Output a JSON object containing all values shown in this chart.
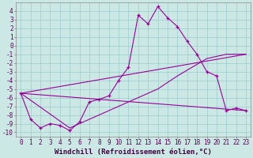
{
  "xlabel": "Windchill (Refroidissement éolien,°C)",
  "bg_color": "#cce8e4",
  "grid_color": "#99cccc",
  "line_color": "#990099",
  "xlim": [
    -0.5,
    23.5
  ],
  "ylim": [
    -10.5,
    5.0
  ],
  "xticks": [
    0,
    1,
    2,
    3,
    4,
    5,
    6,
    7,
    8,
    9,
    10,
    11,
    12,
    13,
    14,
    15,
    16,
    17,
    18,
    19,
    20,
    21,
    22,
    23
  ],
  "yticks": [
    -10,
    -9,
    -8,
    -7,
    -6,
    -5,
    -4,
    -3,
    -2,
    -1,
    0,
    1,
    2,
    3,
    4
  ],
  "main_x": [
    0,
    1,
    2,
    3,
    4,
    5,
    6,
    7,
    8,
    9,
    10,
    11,
    12,
    13,
    14,
    15,
    16,
    17,
    18,
    19,
    20,
    21,
    22,
    23
  ],
  "main_y": [
    -5.5,
    -8.5,
    -9.5,
    -9.0,
    -9.2,
    -9.8,
    -8.8,
    -6.5,
    -6.2,
    -5.8,
    -4.0,
    -2.5,
    3.5,
    2.5,
    4.5,
    3.2,
    2.2,
    0.5,
    -1.0,
    -3.0,
    -3.5,
    -7.5,
    -7.2,
    -7.5
  ],
  "line1_x": [
    0,
    23
  ],
  "line1_y": [
    -5.5,
    -1.0
  ],
  "line2_x": [
    0,
    23
  ],
  "line2_y": [
    -5.5,
    -7.5
  ],
  "line3_x": [
    0,
    5,
    10,
    14,
    16,
    19,
    21,
    23
  ],
  "line3_y": [
    -5.5,
    -9.5,
    -7.0,
    -5.0,
    -3.5,
    -1.5,
    -1.0,
    -1.0
  ],
  "xlabel_fontsize": 6.5,
  "tick_fontsize": 5.5
}
